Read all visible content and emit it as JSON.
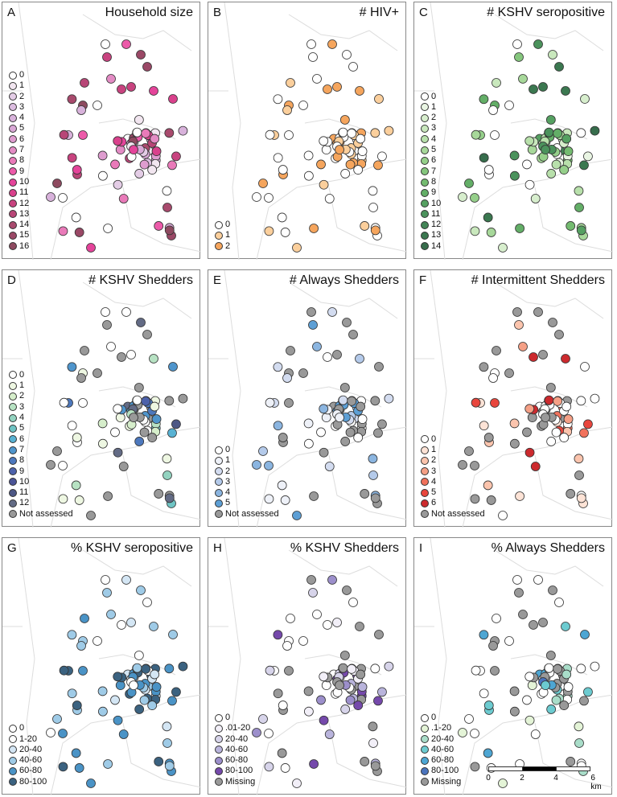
{
  "panels": [
    {
      "letter": "A",
      "title": "Household size",
      "legend": [
        [
          "0",
          "#ffffff"
        ],
        [
          "1",
          "#f2e6f0"
        ],
        [
          "2",
          "#e4cde6"
        ],
        [
          "3",
          "#dcbde0"
        ],
        [
          "4",
          "#d8b2db"
        ],
        [
          "5",
          "#d9a8d6"
        ],
        [
          "6",
          "#de9ccf"
        ],
        [
          "7",
          "#e38bc4"
        ],
        [
          "8",
          "#e97ab9"
        ],
        [
          "9",
          "#ec5aa9"
        ],
        [
          "10",
          "#e4449a"
        ],
        [
          "11",
          "#d9418c"
        ],
        [
          "12",
          "#c8437f"
        ],
        [
          "13",
          "#b84677"
        ],
        [
          "14",
          "#a84a6d"
        ],
        [
          "15",
          "#9a4866"
        ],
        [
          "16",
          "#8e4a60"
        ]
      ]
    },
    {
      "letter": "B",
      "title": "# HIV+",
      "legend": [
        [
          "0",
          "#ffffff"
        ],
        [
          "1",
          "#fbcf9c"
        ],
        [
          "2",
          "#f5a55d"
        ]
      ]
    },
    {
      "letter": "C",
      "title": "# KSHV seropositive",
      "legend": [
        [
          "0",
          "#ffffff"
        ],
        [
          "1",
          "#e9f5e3"
        ],
        [
          "2",
          "#d7eecd"
        ],
        [
          "3",
          "#c9e8bd"
        ],
        [
          "4",
          "#b8e0ab"
        ],
        [
          "5",
          "#a7d89a"
        ],
        [
          "6",
          "#95cf8a"
        ],
        [
          "7",
          "#85c67d"
        ],
        [
          "8",
          "#74bb70"
        ],
        [
          "9",
          "#63ae67"
        ],
        [
          "10",
          "#55a061"
        ],
        [
          "11",
          "#4b925c"
        ],
        [
          "12",
          "#438557"
        ],
        [
          "13",
          "#3b7850"
        ],
        [
          "14",
          "#376d4c"
        ]
      ]
    },
    {
      "letter": "D",
      "title": "# KSHV Shedders",
      "legend": [
        [
          "0",
          "#ffffff"
        ],
        [
          "1",
          "#eef7e2"
        ],
        [
          "2",
          "#d6eecb"
        ],
        [
          "3",
          "#b7e2c3"
        ],
        [
          "4",
          "#93d3c0"
        ],
        [
          "5",
          "#6fc4c4"
        ],
        [
          "6",
          "#58b2d3"
        ],
        [
          "7",
          "#4f95cc"
        ],
        [
          "8",
          "#4d78bd"
        ],
        [
          "9",
          "#4d62ab"
        ],
        [
          "10",
          "#4b5496"
        ],
        [
          "11",
          "#4d5785"
        ],
        [
          "12",
          "#636b85"
        ],
        [
          "Not assessed",
          "#999999"
        ]
      ]
    },
    {
      "letter": "E",
      "title": "# Always Shedders",
      "legend": [
        [
          "0",
          "#ffffff"
        ],
        [
          "1",
          "#eef1f8"
        ],
        [
          "2",
          "#d3dcf0"
        ],
        [
          "3",
          "#b4caea"
        ],
        [
          "4",
          "#8bb5e0"
        ],
        [
          "5",
          "#5d9fd5"
        ],
        [
          "Not assessed",
          "#999999"
        ]
      ]
    },
    {
      "letter": "F",
      "title": "# Intermittent Shedders",
      "legend": [
        [
          "0",
          "#ffffff"
        ],
        [
          "1",
          "#fde3d6"
        ],
        [
          "2",
          "#fbc4ad"
        ],
        [
          "3",
          "#f5a086"
        ],
        [
          "4",
          "#f1725c"
        ],
        [
          "5",
          "#e8463d"
        ],
        [
          "6",
          "#cc2a2e"
        ],
        [
          "Not assessed",
          "#999999"
        ]
      ]
    },
    {
      "letter": "G",
      "title": "% KSHV seropositive",
      "legend": [
        [
          "0",
          "#ffffff"
        ],
        [
          "1-20",
          "#ffffff"
        ],
        [
          "20-40",
          "#d4e6f4"
        ],
        [
          "40-60",
          "#9fcbe7"
        ],
        [
          "60-80",
          "#4a93c6"
        ],
        [
          "80-100",
          "#3b6280"
        ]
      ]
    },
    {
      "letter": "H",
      "title": "% KSHV Shedders",
      "legend": [
        [
          "0",
          "#ffffff"
        ],
        [
          ".01-20",
          "#f2eff8"
        ],
        [
          "20-40",
          "#d7d4ea"
        ],
        [
          "40-60",
          "#b9b4dc"
        ],
        [
          "60-80",
          "#9c8fcb"
        ],
        [
          "80-100",
          "#7549ab"
        ],
        [
          "Missing",
          "#999999"
        ]
      ]
    },
    {
      "letter": "I",
      "title": "% Always Shedders",
      "legend": [
        [
          "0",
          "#ffffff"
        ],
        [
          ".1-20",
          "#e4f4d7"
        ],
        [
          "20-40",
          "#a9ddc9"
        ],
        [
          "40-60",
          "#6ccbd0"
        ],
        [
          "60-80",
          "#4ea6d3"
        ],
        [
          "80-100",
          "#4b74bd"
        ],
        [
          "Missing",
          "#999999"
        ]
      ]
    }
  ],
  "scale_bar": {
    "labels": [
      "0",
      "2",
      "4",
      "6 km"
    ]
  }
}
